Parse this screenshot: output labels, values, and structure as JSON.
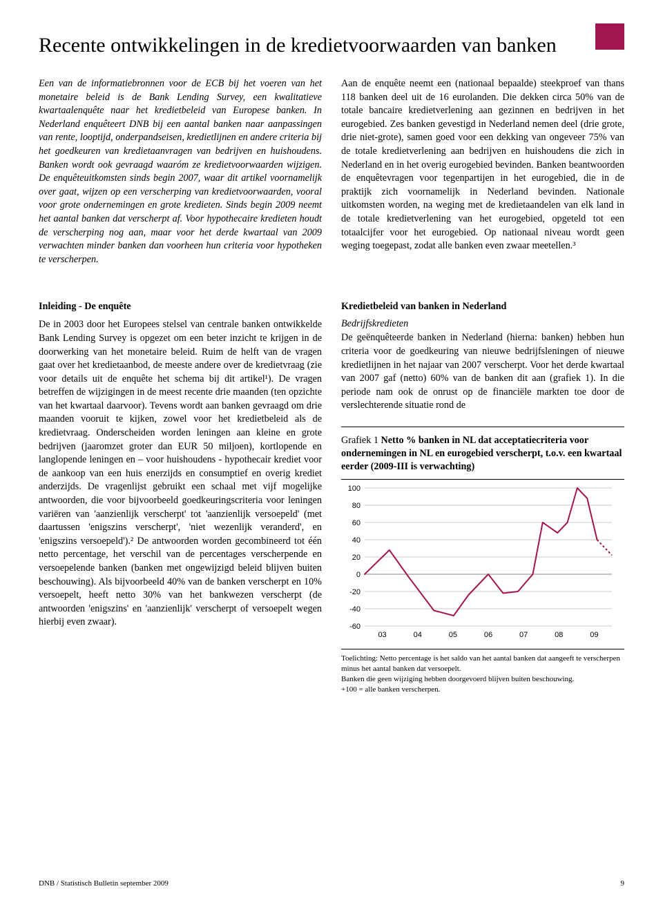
{
  "accent_color": "#a2154f",
  "title": "Recente ontwikkelingen in de kredietvoorwaarden van banken",
  "intro_paragraph": "Een van de informatiebronnen voor de ECB bij het voeren van het monetaire beleid is de Bank Lending Survey, een kwalitatieve kwartaalenquête naar het kredietbeleid van Europese banken. In Nederland enquêteert DNB bij een aantal banken naar aanpassingen van rente, looptijd, onderpandseisen, kredietlijnen en andere criteria bij het goedkeuren van kredietaanvragen van bedrijven en huishoudens. Banken wordt ook gevraagd waaróm ze kredietvoorwaarden wijzigen. De enquêteuitkomsten sinds begin 2007, waar dit artikel voornamelijk over gaat, wijzen op een verscherping van kredietvoorwaarden, vooral voor grote ondernemingen en grote kredieten. Sinds begin 2009 neemt het aantal banken dat verscherpt af. Voor hypothecaire kredieten houdt de verscherping nog aan, maar voor het derde kwartaal van 2009 verwachten minder banken dan voorheen hun criteria voor hypotheken te verscherpen.",
  "right_top_paragraph": "Aan de enquête neemt een (nationaal bepaalde) steekproef van thans 118 banken deel uit de 16 eurolanden. Die dekken circa 50% van de totale bancaire kredietverlening aan gezinnen en bedrijven in het eurogebied. Zes banken gevestigd in Nederland nemen deel (drie grote, drie niet-grote), samen goed voor een dekking van ongeveer 75% van de totale kredietverlening aan bedrijven en huishoudens die zich in Nederland en in het overig eurogebied bevinden. Banken beantwoorden de enquêtevragen voor tegenpartijen in het eurogebied, die in de praktijk zich voornamelijk in Nederland bevinden. Nationale uitkomsten worden, na weging met de kredietaandelen van elk land in de totale kredietverlening van het eurogebied, opgeteld tot een totaalcijfer voor het eurogebied. Op nationaal niveau wordt geen weging toegepast, zodat alle banken even zwaar meetellen.³",
  "section_left_head": "Inleiding - De enquête",
  "section_left_body": "De in 2003 door het Europees stelsel van centrale banken ontwikkelde Bank Lending Survey is opgezet om een beter inzicht te krijgen in de doorwerking van het monetaire beleid. Ruim de helft van de vragen gaat over het kredietaanbod, de meeste andere over de kredietvraag (zie voor details uit de enquête het schema bij dit artikel¹). De vragen betreffen de wijzigingen in de meest recente drie maanden (ten opzichte van het kwartaal daarvoor). Tevens wordt aan banken gevraagd om drie maanden vooruit te kijken, zowel voor het kredietbeleid als de kredietvraag. Onderscheiden worden leningen aan kleine en grote bedrijven (jaaromzet groter dan EUR 50 miljoen), kortlopende en langlopende leningen en – voor huishoudens - hypothecair krediet voor de aankoop van een huis enerzijds en consumptief en overig krediet anderzijds. De vragenlijst gebruikt een schaal met vijf mogelijke antwoorden, die voor bijvoorbeeld goedkeuringscriteria voor leningen variëren van 'aanzienlijk verscherpt' tot 'aanzienlijk versoepeld' (met daartussen 'enigszins verscherpt', 'niet wezenlijk veranderd', en 'enigszins versoepeld').² De antwoorden worden gecombineerd tot één netto percentage, het verschil van de percentages verscherpende en versoepelende banken (banken met ongewijzigd beleid blijven buiten beschouwing). Als bijvoorbeeld 40% van de banken verscherpt en 10% versoepelt, heeft netto 30% van het bankwezen verscherpt (de antwoorden 'enigszins' en 'aanzienlijk' verscherpt of versoepelt wegen hierbij even zwaar).",
  "section_right_head": "Kredietbeleid van banken in Nederland",
  "section_right_subhead": "Bedrijfskredieten",
  "section_right_body": "De geënquêteerde banken in Nederland (hierna: banken) hebben hun criteria voor de goedkeuring van nieuwe bedrijfsleningen of nieuwe kredietlijnen in het najaar van 2007 verscherpt. Voor het derde kwartaal van 2007 gaf (netto) 60% van de banken dit aan (grafiek 1). In die periode nam ook de onrust op de financiële markten toe door de verslechterende situatie rond de",
  "chart": {
    "title_prefix": "Grafiek 1  ",
    "title_bold": "Netto % banken in NL dat acceptatiecriteria voor ondernemingen in NL en eurogebied verscherpt, t.o.v. een kwartaal eerder (2009-III is verwachting)",
    "y_ticks": [
      100,
      80,
      60,
      40,
      20,
      0,
      -20,
      -40,
      -60
    ],
    "x_ticks": [
      "03",
      "04",
      "05",
      "06",
      "07",
      "08",
      "09"
    ],
    "ylim": [
      -60,
      100
    ],
    "line_color": "#a2154f",
    "grid_color": "#c8c8c8",
    "axis_color": "#000000",
    "background": "#ffffff",
    "line_width": 2,
    "series": [
      {
        "x": 0.0,
        "y": 0
      },
      {
        "x": 0.1,
        "y": 28
      },
      {
        "x": 0.18,
        "y": -4
      },
      {
        "x": 0.28,
        "y": -42
      },
      {
        "x": 0.36,
        "y": -48
      },
      {
        "x": 0.42,
        "y": -24
      },
      {
        "x": 0.5,
        "y": 0
      },
      {
        "x": 0.56,
        "y": -22
      },
      {
        "x": 0.62,
        "y": -20
      },
      {
        "x": 0.68,
        "y": 0
      },
      {
        "x": 0.72,
        "y": 60
      },
      {
        "x": 0.78,
        "y": 48
      },
      {
        "x": 0.82,
        "y": 60
      },
      {
        "x": 0.86,
        "y": 100
      },
      {
        "x": 0.9,
        "y": 88
      },
      {
        "x": 0.94,
        "y": 40
      }
    ],
    "dash_series": [
      {
        "x": 0.94,
        "y": 40
      },
      {
        "x": 1.0,
        "y": 22
      }
    ],
    "note": "Toelichting: Netto percentage is het saldo van het aantal banken dat aangeeft te verscherpen minus het aantal banken dat versoepelt.\nBanken die geen wijziging hebben doorgevoerd blijven buiten beschouwing.\n+100 = alle banken verscherpen."
  },
  "footer_left_sc": "DNB",
  "footer_left_rest": " / Statistisch Bulletin september 2009",
  "footer_page": "9"
}
